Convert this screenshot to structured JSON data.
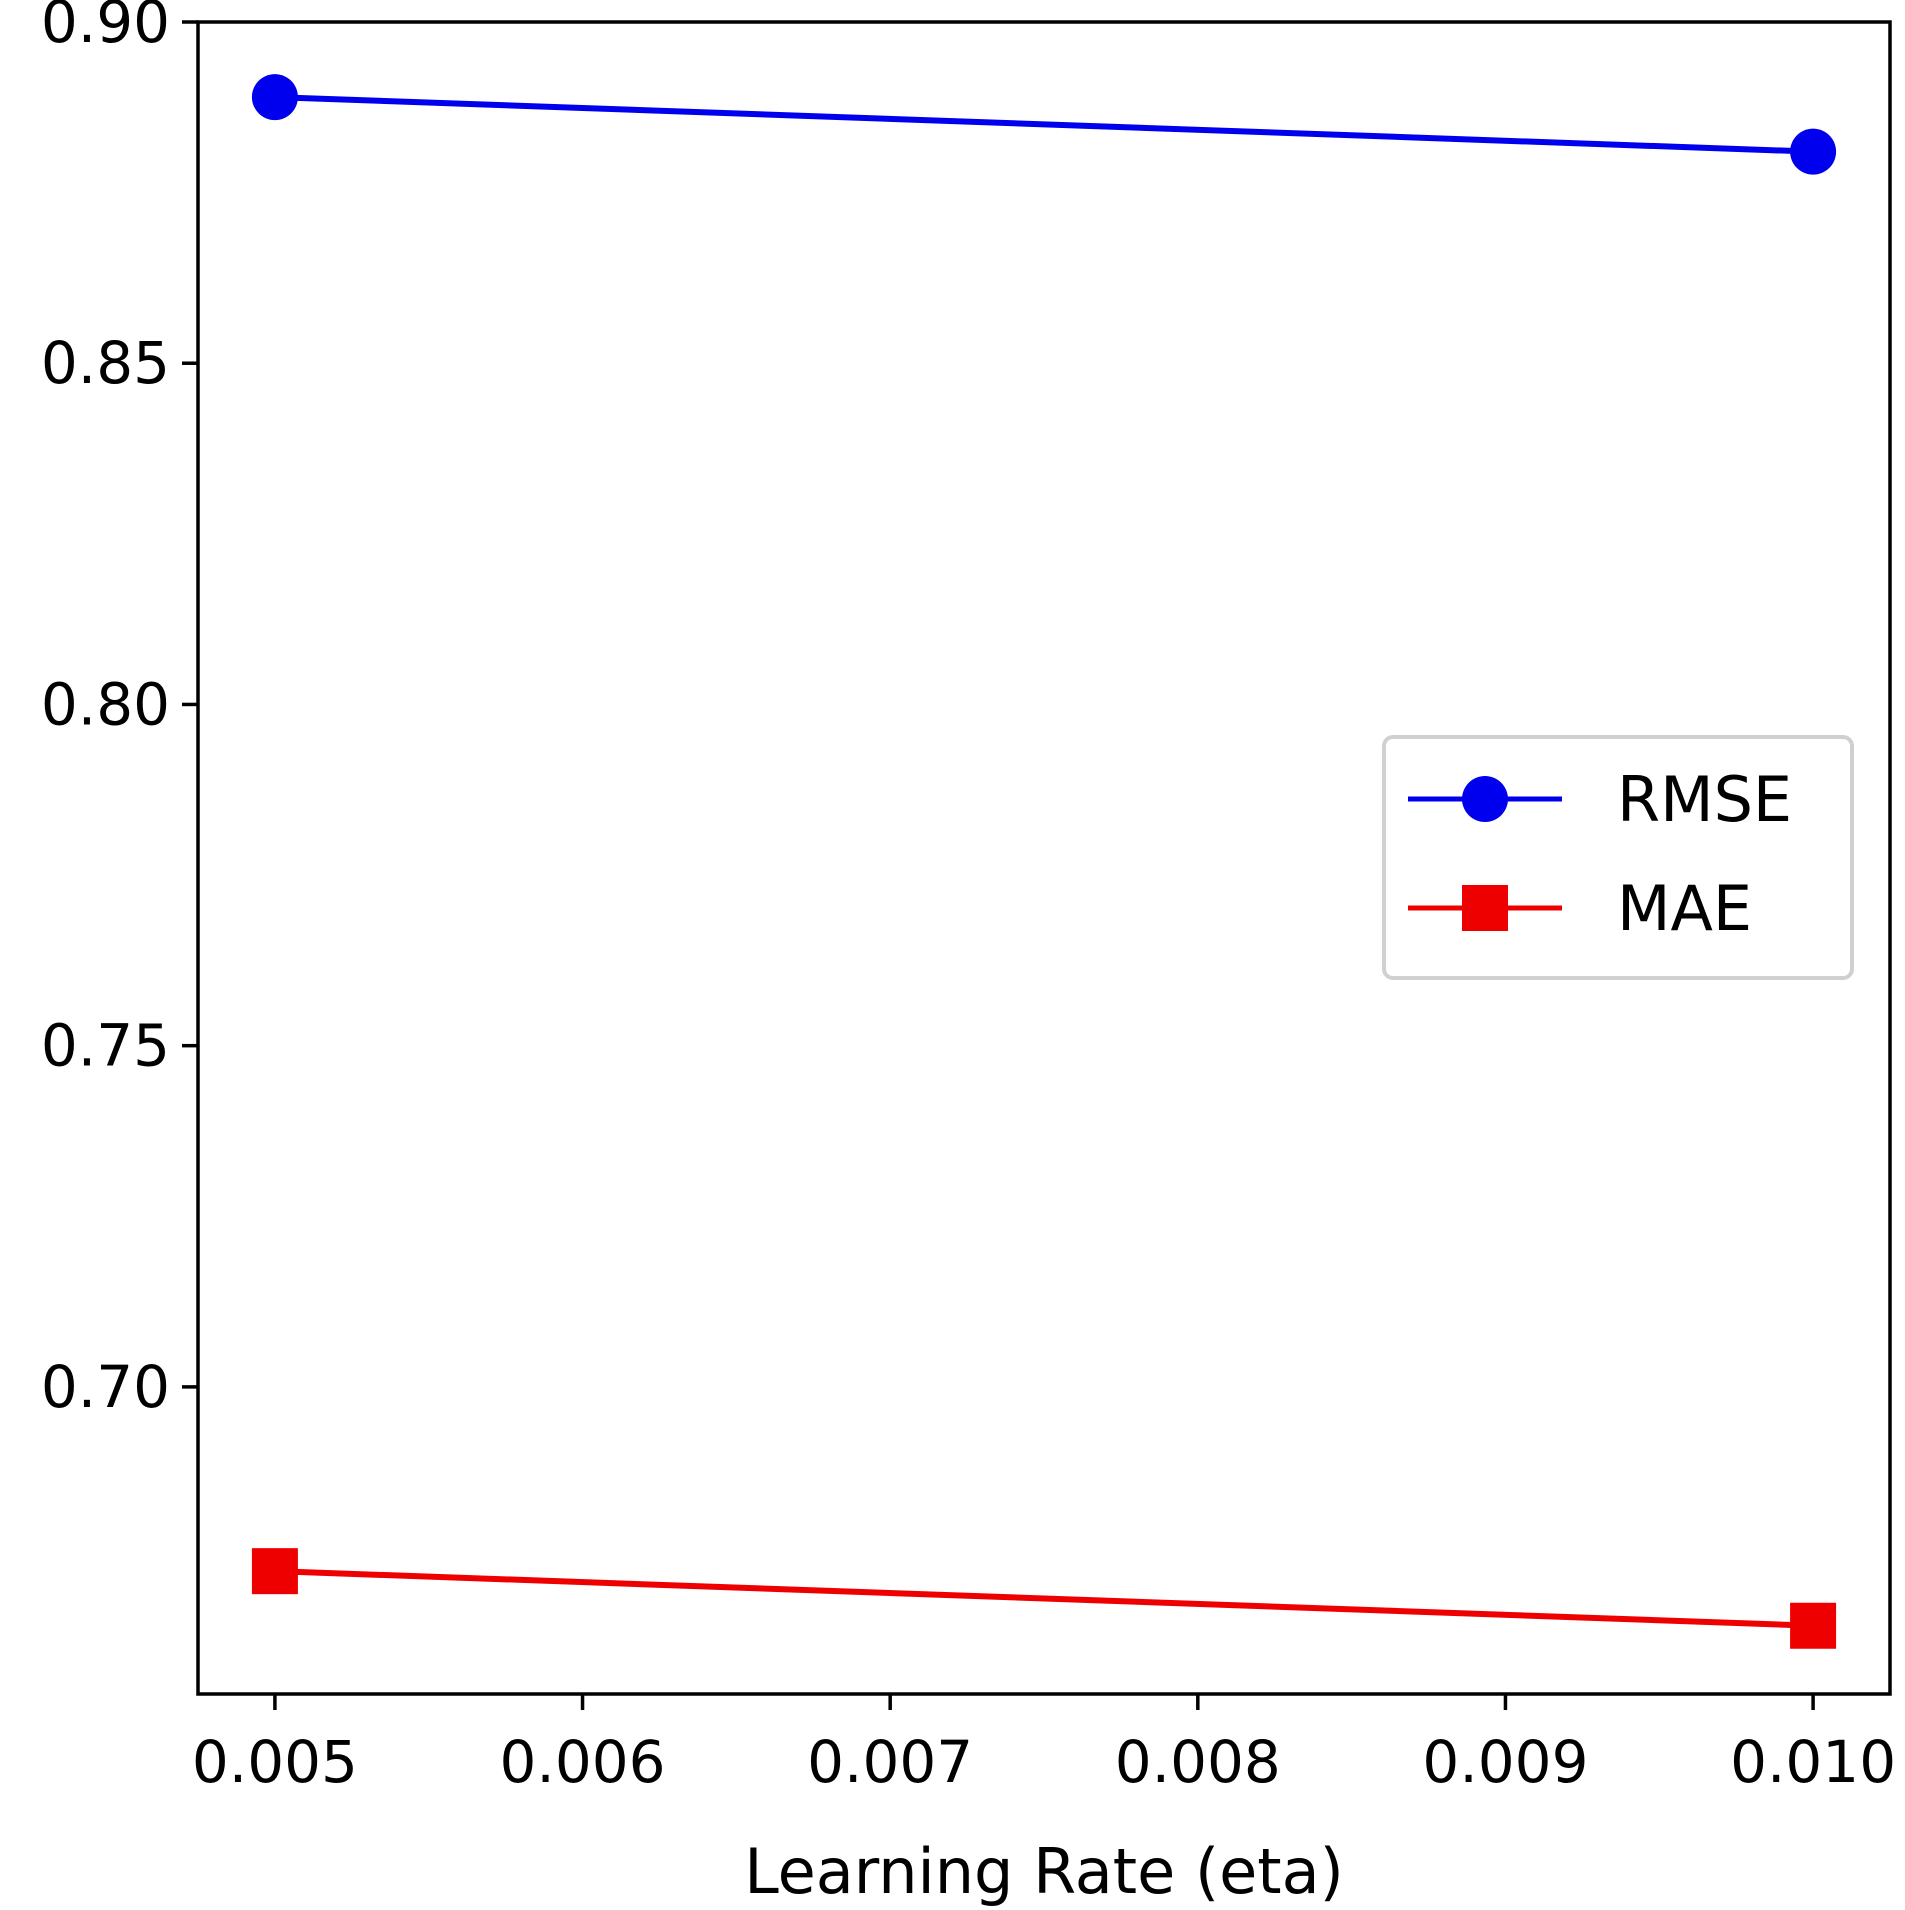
{
  "chart_data": {
    "type": "line",
    "title": "",
    "xlabel": "Learning Rate (eta)",
    "ylabel": "",
    "x": [
      0.005,
      0.01
    ],
    "xlim": [
      0.00475,
      0.01025
    ],
    "ylim": [
      0.655,
      0.9
    ],
    "xticks": [
      "0.005",
      "0.006",
      "0.007",
      "0.008",
      "0.009",
      "0.010"
    ],
    "xtick_values": [
      0.005,
      0.006,
      0.007,
      0.008,
      0.009,
      0.01
    ],
    "yticks": [
      "0.70",
      "0.75",
      "0.80",
      "0.85",
      "0.90"
    ],
    "ytick_values": [
      0.7,
      0.75,
      0.8,
      0.85,
      0.9
    ],
    "grid": false,
    "legend_position": "center-right",
    "series": [
      {
        "name": "RMSE",
        "values": [
          0.889,
          0.881
        ],
        "color": "#0000ee",
        "marker": "circle"
      },
      {
        "name": "MAE",
        "values": [
          0.673,
          0.665
        ],
        "color": "#ee0000",
        "marker": "square"
      }
    ]
  }
}
